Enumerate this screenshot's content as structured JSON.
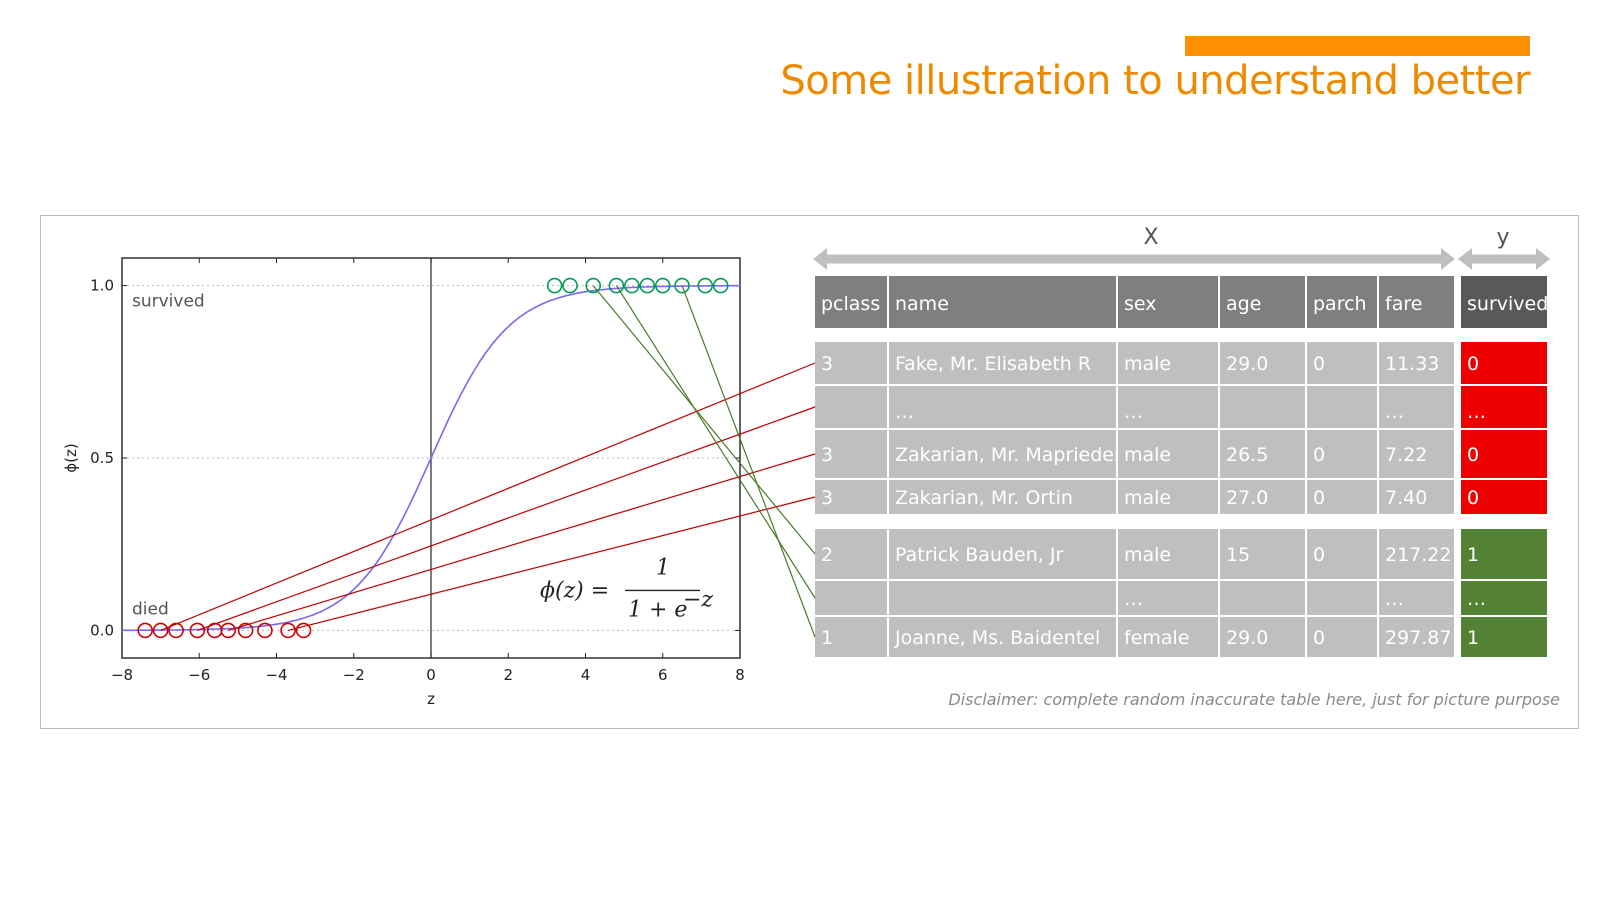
{
  "slide": {
    "title": "Some illustration to understand better",
    "accent_color": "#ff8f00",
    "disclaimer": "Disclaimer: complete random inaccurate table here, just for picture purpose"
  },
  "plot": {
    "xlabel": "z",
    "ylabel": "ϕ(z)",
    "xlim": [
      -8,
      8
    ],
    "ylim": [
      -0.08,
      1.08
    ],
    "x_ticks": [
      "−8",
      "−6",
      "−4",
      "−2",
      "0",
      "2",
      "4",
      "6",
      "8"
    ],
    "y_ticks": [
      "0.0",
      "0.5",
      "1.0"
    ],
    "label_survived": "survived",
    "label_died": "died",
    "equation_lhs": "ϕ(z) =",
    "equation_num": "1",
    "equation_den": "1 + e",
    "equation_exp": "−z",
    "curve_color": "#7b68ee",
    "died_color": "#cc0000",
    "survived_color": "#009b55",
    "died_points_z": [
      -7.4,
      -7.0,
      -6.6,
      -6.05,
      -5.6,
      -5.25,
      -4.8,
      -4.3,
      -3.7,
      -3.3
    ],
    "survived_points_z": [
      3.2,
      3.6,
      4.2,
      4.8,
      5.2,
      5.6,
      6.0,
      6.5,
      7.1,
      7.5
    ]
  },
  "table": {
    "x_label": "X",
    "y_label": "y",
    "columns": [
      "pclass",
      "name",
      "sex",
      "age",
      "parch",
      "fare"
    ],
    "target_column": "survived",
    "header_color": "#7f7f7f",
    "target_header_color": "#595959",
    "cell_color": "#bfbfbf",
    "died_color": "#ee0000",
    "survived_color": "#548235",
    "died_rows": [
      {
        "cells": [
          "3",
          "Fake, Mr. Elisabeth R",
          "male",
          "29.0",
          "0",
          "11.33"
        ],
        "survived": "0"
      },
      {
        "cells": [
          "",
          "…",
          "…",
          "",
          "",
          "…"
        ],
        "survived": "…"
      },
      {
        "cells": [
          "3",
          "Zakarian, Mr. Maprieder",
          "male",
          "26.5",
          "0",
          "7.22"
        ],
        "survived": "0"
      },
      {
        "cells": [
          "3",
          "Zakarian, Mr. Ortin",
          "male",
          "27.0",
          "0",
          "7.40"
        ],
        "survived": "0"
      }
    ],
    "survived_rows": [
      {
        "cells": [
          "2",
          "Patrick Bauden, Jr",
          "male",
          "15",
          "0",
          "217.22"
        ],
        "survived": "1"
      },
      {
        "cells": [
          "",
          "",
          "…",
          "",
          "",
          "…"
        ],
        "survived": "…"
      },
      {
        "cells": [
          "1",
          "Joanne, Ms. Baidentel",
          "female",
          "29.0",
          "0",
          "297.87"
        ],
        "survived": "1"
      }
    ]
  },
  "links": {
    "died_color": "#c00000",
    "survived_color": "#4a7a2a",
    "died": [
      [
        -7.0,
        0
      ],
      [
        -6.05,
        1
      ],
      [
        -5.25,
        2
      ],
      [
        -3.7,
        3
      ]
    ],
    "survived": [
      [
        4.2,
        4
      ],
      [
        4.8,
        5
      ],
      [
        6.5,
        6
      ]
    ]
  }
}
